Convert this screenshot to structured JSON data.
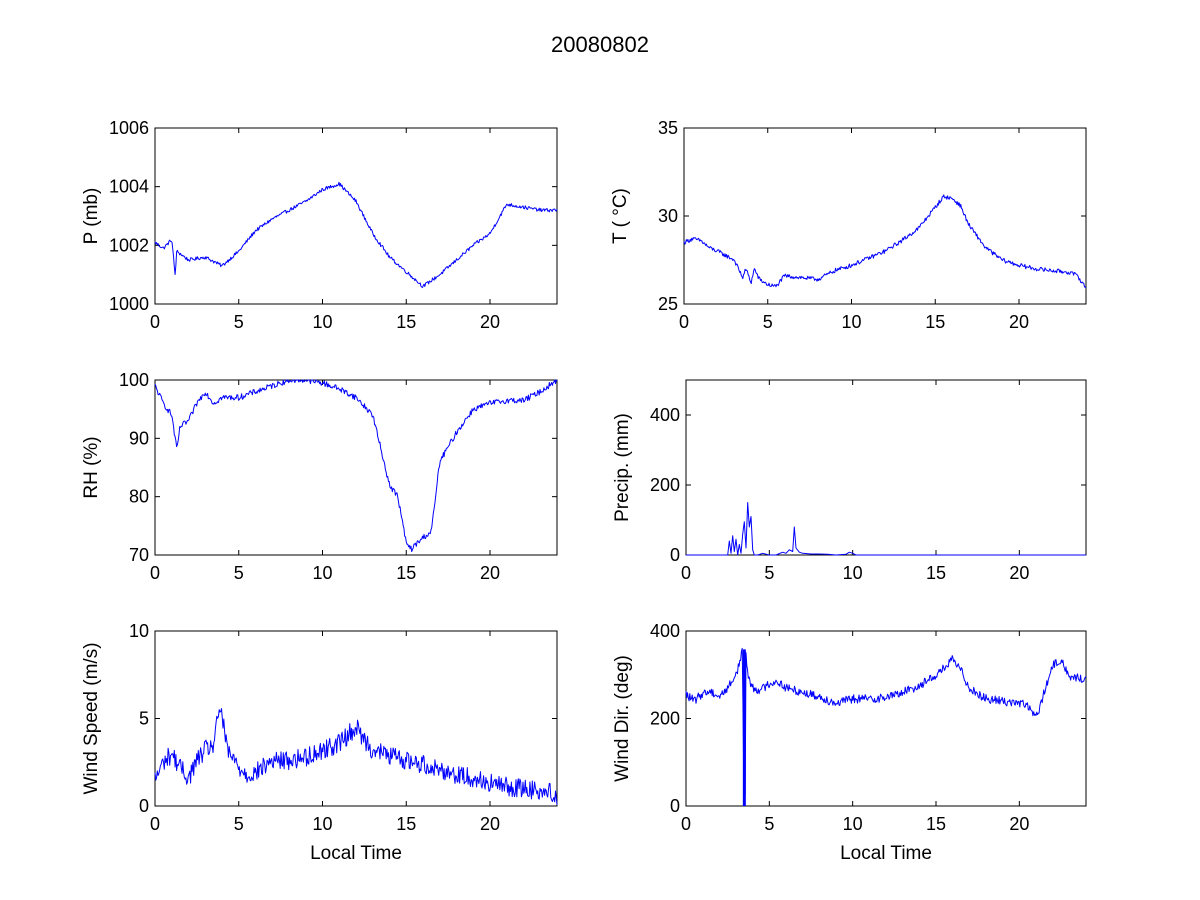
{
  "figure": {
    "title": "20080802"
  },
  "colors": {
    "series": "#0000ff",
    "axes": "#000000",
    "background": "#ffffff"
  },
  "chart_data": [
    {
      "id": "pressure",
      "type": "line",
      "title": "",
      "xlabel": "",
      "ylabel": "P (mb)",
      "xlim": [
        0,
        24
      ],
      "ylim": [
        1000,
        1006
      ],
      "xticks": [
        0,
        5,
        10,
        15,
        20
      ],
      "yticks": [
        1000,
        1002,
        1004,
        1006
      ],
      "noise": 0.06,
      "series": [
        {
          "name": "P",
          "x": [
            0,
            0.5,
            1,
            1.2,
            1.3,
            2,
            3,
            4,
            5,
            6,
            7,
            8,
            9,
            10,
            11,
            12,
            13,
            14,
            15,
            16,
            17,
            18,
            19,
            20,
            21,
            22,
            23,
            24
          ],
          "y": [
            1002.1,
            1001.9,
            1002.2,
            1001.0,
            1001.8,
            1001.5,
            1001.6,
            1001.3,
            1001.8,
            1002.5,
            1002.9,
            1003.2,
            1003.5,
            1003.9,
            1004.1,
            1003.5,
            1002.4,
            1001.6,
            1001.1,
            1000.6,
            1001.0,
            1001.5,
            1002.0,
            1002.4,
            1003.4,
            1003.3,
            1003.2,
            1003.2
          ]
        }
      ]
    },
    {
      "id": "temperature",
      "type": "line",
      "title": "",
      "xlabel": "",
      "ylabel": "T ( °C)",
      "xlim": [
        0,
        24
      ],
      "ylim": [
        25,
        35
      ],
      "xticks": [
        0,
        5,
        10,
        15,
        20
      ],
      "yticks": [
        25,
        30,
        35
      ],
      "noise": 0.12,
      "series": [
        {
          "name": "T",
          "x": [
            0,
            0.5,
            1,
            1.5,
            2,
            3,
            3.5,
            3.7,
            4,
            4.2,
            4.5,
            5,
            5.5,
            6,
            7,
            8,
            9,
            10,
            11,
            12,
            13,
            14,
            15,
            15.5,
            16,
            16.5,
            17,
            18,
            19,
            20,
            21,
            22,
            23,
            23.5,
            24
          ],
          "y": [
            28.5,
            28.7,
            28.6,
            28.2,
            28.0,
            27.5,
            26.5,
            27.0,
            26.2,
            27.0,
            26.4,
            26.1,
            26.0,
            26.6,
            26.5,
            26.4,
            26.9,
            27.2,
            27.6,
            28.0,
            28.6,
            29.3,
            30.5,
            31.1,
            31.0,
            30.6,
            29.5,
            28.2,
            27.5,
            27.2,
            27.0,
            26.9,
            26.8,
            26.6,
            25.9
          ]
        }
      ]
    },
    {
      "id": "humidity",
      "type": "line",
      "title": "",
      "xlabel": "",
      "ylabel": "RH (%)",
      "xlim": [
        0,
        24
      ],
      "ylim": [
        70,
        100
      ],
      "xticks": [
        0,
        5,
        10,
        15,
        20
      ],
      "yticks": [
        70,
        80,
        90,
        100
      ],
      "noise": 0.5,
      "series": [
        {
          "name": "RH",
          "x": [
            0,
            0.5,
            1,
            1.3,
            1.5,
            2,
            2.5,
            3,
            3.5,
            4,
            5,
            6,
            7,
            8,
            9,
            10,
            11,
            12,
            13,
            13.5,
            14,
            14.5,
            15,
            15.3,
            16,
            16.5,
            17,
            18,
            19,
            20,
            21,
            22,
            23,
            24
          ],
          "y": [
            99,
            96,
            94,
            88,
            92,
            93,
            96,
            98,
            96,
            97,
            97,
            98,
            99,
            100,
            100,
            99.5,
            98.5,
            97,
            94,
            88,
            82,
            80,
            72,
            71,
            73,
            74,
            86,
            91,
            95,
            96,
            96.5,
            96.5,
            98,
            100
          ]
        }
      ]
    },
    {
      "id": "precipitation",
      "type": "line",
      "title": "",
      "xlabel": "",
      "ylabel": "Precip. (mm)",
      "xlim": [
        0,
        24
      ],
      "ylim": [
        0,
        500
      ],
      "xticks": [
        0,
        5,
        10,
        15,
        20
      ],
      "yticks": [
        0,
        200,
        400
      ],
      "noise": 0,
      "series": [
        {
          "name": "Precip",
          "x": [
            0,
            2.5,
            2.6,
            2.7,
            2.8,
            2.9,
            3.0,
            3.1,
            3.2,
            3.3,
            3.4,
            3.5,
            3.6,
            3.7,
            3.8,
            3.9,
            4.0,
            4.1,
            4.3,
            4.6,
            5.0,
            5.4,
            5.8,
            6.0,
            6.2,
            6.4,
            6.5,
            6.6,
            6.8,
            7.0,
            7.5,
            8.0,
            8.5,
            9.0,
            9.6,
            9.8,
            10.0,
            10.2,
            24
          ],
          "y": [
            0,
            0,
            40,
            5,
            55,
            10,
            45,
            0,
            30,
            5,
            60,
            95,
            20,
            150,
            80,
            110,
            15,
            0,
            0,
            5,
            0,
            0,
            8,
            5,
            15,
            10,
            80,
            20,
            8,
            5,
            3,
            3,
            2,
            0,
            2,
            8,
            5,
            0,
            0
          ]
        }
      ]
    },
    {
      "id": "wind_speed",
      "type": "line",
      "title": "",
      "xlabel": "Local Time",
      "ylabel": "Wind Speed (m/s)",
      "xlim": [
        0,
        24
      ],
      "ylim": [
        0,
        10
      ],
      "xticks": [
        0,
        5,
        10,
        15,
        20
      ],
      "yticks": [
        0,
        5,
        10
      ],
      "noise": 0.55,
      "series": [
        {
          "name": "Wind Speed",
          "x": [
            0,
            0.5,
            1,
            1.5,
            2,
            2.5,
            3,
            3.5,
            3.9,
            4.3,
            5,
            5.5,
            6,
            7,
            8,
            9,
            10,
            11,
            12,
            12.5,
            13,
            14,
            15,
            16,
            17,
            18,
            19,
            20,
            21,
            22,
            23,
            23.5,
            24
          ],
          "y": [
            1.5,
            2.5,
            3.0,
            2.2,
            1.6,
            2.6,
            3.2,
            3.5,
            5.8,
            3.2,
            2.2,
            1.8,
            1.9,
            2.6,
            2.6,
            2.8,
            3.2,
            3.6,
            4.5,
            3.8,
            3.2,
            2.9,
            2.6,
            2.4,
            2.1,
            1.8,
            1.6,
            1.3,
            1.1,
            1.0,
            0.9,
            0.8,
            0.6
          ]
        }
      ]
    },
    {
      "id": "wind_direction",
      "type": "line",
      "title": "",
      "xlabel": "Local Time",
      "ylabel": "Wind Dir. (deg)",
      "xlim": [
        0,
        24
      ],
      "ylim": [
        0,
        400
      ],
      "xticks": [
        0,
        5,
        10,
        15,
        20
      ],
      "yticks": [
        0,
        200,
        400
      ],
      "noise": 10,
      "series": [
        {
          "name": "Wind Dir",
          "x": [
            0,
            0.5,
            1,
            1.5,
            2,
            2.5,
            3,
            3.3,
            3.4,
            3.45,
            3.5,
            3.55,
            3.6,
            3.7,
            4,
            4.5,
            5,
            5.5,
            6,
            7,
            8,
            9,
            10,
            11,
            12,
            13,
            14,
            15,
            15.5,
            16,
            16.5,
            17,
            18,
            19,
            20,
            20.5,
            21,
            21.5,
            22,
            22.5,
            23,
            24
          ],
          "y": [
            255,
            240,
            258,
            262,
            250,
            270,
            300,
            340,
            355,
            0,
            358,
            0,
            350,
            300,
            270,
            265,
            280,
            285,
            270,
            260,
            250,
            235,
            245,
            245,
            248,
            260,
            275,
            300,
            315,
            335,
            310,
            270,
            245,
            240,
            235,
            230,
            200,
            260,
            320,
            335,
            295,
            290
          ]
        }
      ]
    }
  ]
}
